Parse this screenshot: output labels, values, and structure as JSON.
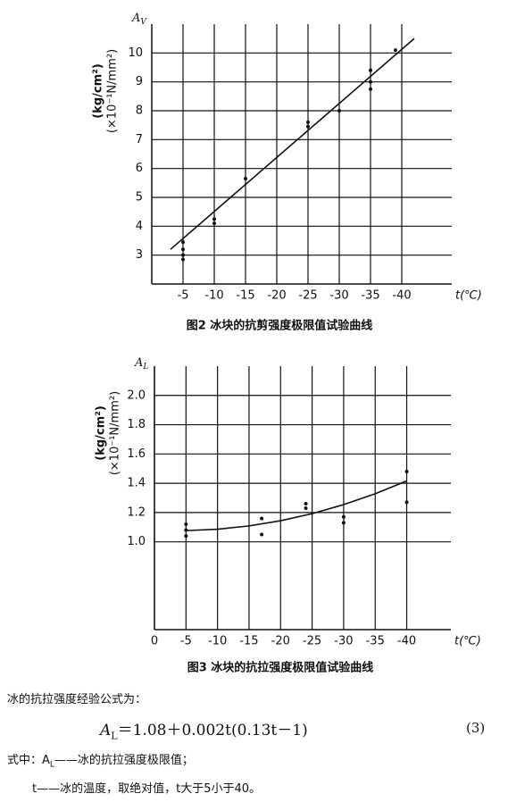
{
  "chart_data": [
    {
      "type": "scatter",
      "title": "图2  冰块的抗剪强度极限值试验曲线",
      "y_axis_title": "A",
      "y_axis_subscript": "V",
      "y_label": [
        "(kg/cm²)",
        "(×10⁻¹N/mm²)"
      ],
      "x_label": "t(℃)",
      "xlim": [
        0,
        -48
      ],
      "ylim": [
        2,
        11
      ],
      "xticks": [
        -5,
        -10,
        -15,
        -20,
        -25,
        -30,
        -35,
        -40
      ],
      "yticks": [
        3,
        4,
        5,
        6,
        7,
        8,
        9,
        10
      ],
      "grid": true,
      "color": "#111",
      "points": {
        "x": [
          -5,
          -5,
          -5,
          -5,
          -10,
          -10,
          -15,
          -25,
          -25,
          -30,
          -35,
          -35,
          -35,
          -39
        ],
        "y": [
          3.45,
          3.2,
          3.0,
          2.85,
          4.25,
          4.1,
          5.65,
          7.6,
          7.45,
          8.0,
          9.4,
          9.0,
          8.75,
          10.1
        ]
      },
      "fit": {
        "x": [
          -3,
          -42
        ],
        "y": [
          3.2,
          10.5
        ]
      }
    },
    {
      "type": "scatter",
      "title": "图3  冰块的抗拉强度极限值试验曲线",
      "y_axis_title": "A",
      "y_axis_subscript": "L",
      "y_label": [
        "(kg/cm²)",
        "(×10⁻¹N/mm²)"
      ],
      "x_label": "t(℃)",
      "xlim": [
        0,
        -47
      ],
      "ylim": [
        0.4,
        2.2
      ],
      "xticks": [
        0,
        -5,
        -10,
        -15,
        -20,
        -25,
        -30,
        -35,
        -40
      ],
      "yticks": [
        {
          "value": 1,
          "label": "1.0"
        },
        1.2,
        1.4,
        1.6,
        1.8,
        {
          "value": 2,
          "label": "2.0"
        }
      ],
      "grid": true,
      "color": "#111",
      "points": {
        "x": [
          -5,
          -5,
          -5,
          -17,
          -17,
          -24,
          -24,
          -30,
          -30,
          -40,
          -40
        ],
        "y": [
          1.12,
          1.08,
          1.04,
          1.16,
          1.05,
          1.26,
          1.23,
          1.17,
          1.13,
          1.48,
          1.27
        ]
      },
      "fit": {
        "x": [
          -5,
          -10,
          -15,
          -20,
          -25,
          -30,
          -35,
          -40
        ],
        "y": [
          1.0765,
          1.086,
          1.1085,
          1.144,
          1.1925,
          1.254,
          1.3285,
          1.416
        ]
      }
    }
  ],
  "text": {
    "intro": "冰的抗拉强度经验公式为：",
    "formula_a": "A",
    "formula_sub": "L",
    "formula_rest": "＝1.08＋0.002t(0.13t－1)",
    "formula_number": "(3)",
    "where_1a": "式中：A",
    "where_1sub": "L",
    "where_1b": "——冰的抗拉强度极限值；",
    "where_2": "t——冰的温度，取绝对值，t大于5小于40。"
  }
}
